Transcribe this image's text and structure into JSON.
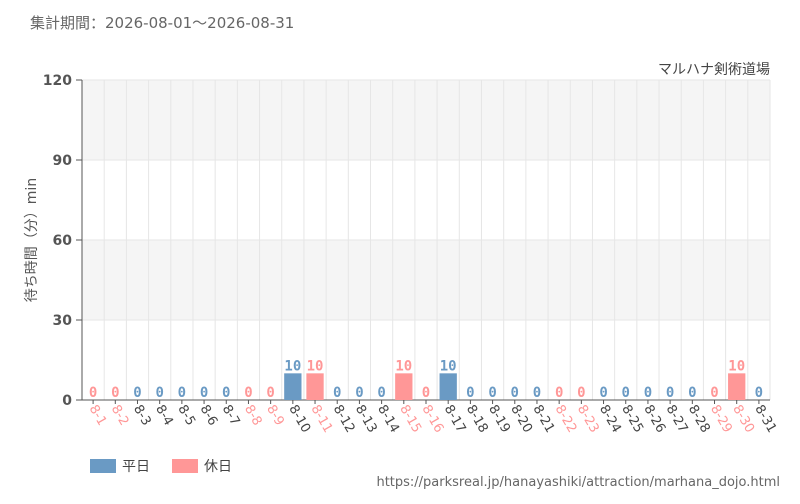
{
  "header": {
    "period": "集計期間：2026-08-01～2026-08-31"
  },
  "footer": {
    "url": "https://parksreal.jp/hanayashiki/attraction/marhana_dojo.html"
  },
  "colors": {
    "weekday": "#6a9ac4",
    "holiday": "#ff9797",
    "grid": "#e6e6e6",
    "band": "#f5f5f5",
    "axis": "#555555"
  },
  "chart_data": {
    "type": "bar",
    "title": "マルハナ剣術道場",
    "ylabel": "待ち時間（分）min",
    "ylim": [
      0,
      120
    ],
    "yticks": [
      0,
      30,
      60,
      90,
      120
    ],
    "legend": [
      {
        "name": "平日",
        "color": "#6a9ac4"
      },
      {
        "name": "休日",
        "color": "#ff9797"
      }
    ],
    "legend_position": "bottom-left",
    "categories": [
      "8-1",
      "8-2",
      "8-3",
      "8-4",
      "8-5",
      "8-6",
      "8-7",
      "8-8",
      "8-9",
      "8-10",
      "8-11",
      "8-12",
      "8-13",
      "8-14",
      "8-15",
      "8-16",
      "8-17",
      "8-18",
      "8-19",
      "8-20",
      "8-21",
      "8-22",
      "8-23",
      "8-24",
      "8-25",
      "8-26",
      "8-27",
      "8-28",
      "8-29",
      "8-30",
      "8-31"
    ],
    "values": [
      0,
      0,
      0,
      0,
      0,
      0,
      0,
      0,
      0,
      10,
      10,
      0,
      0,
      0,
      10,
      0,
      10,
      0,
      0,
      0,
      0,
      0,
      0,
      0,
      0,
      0,
      0,
      0,
      0,
      10,
      0
    ],
    "holiday": [
      true,
      true,
      false,
      false,
      false,
      false,
      false,
      true,
      true,
      false,
      true,
      false,
      false,
      false,
      true,
      true,
      false,
      false,
      false,
      false,
      false,
      true,
      true,
      false,
      false,
      false,
      false,
      false,
      true,
      true,
      false
    ]
  }
}
